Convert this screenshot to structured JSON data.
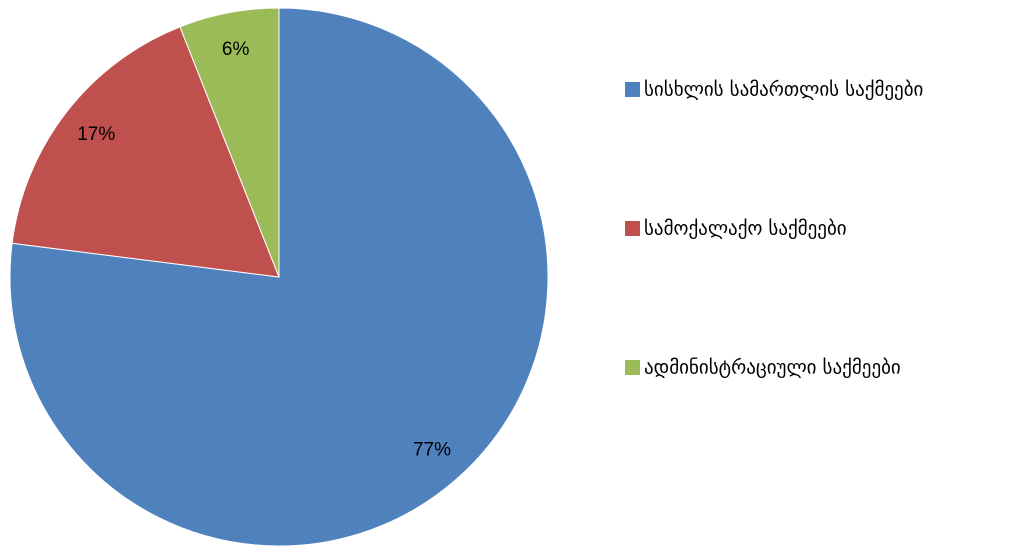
{
  "chart_data": {
    "type": "pie",
    "categories": [
      "სისხლის სამართლის საქმეები",
      "სამოქალაქო საქმეები",
      "ადმინისტრაციული საქმეები"
    ],
    "values": [
      77,
      17,
      6
    ],
    "value_labels": [
      "77%",
      "17%",
      "6%"
    ],
    "colors": [
      "#4f81bd",
      "#c0504d",
      "#9bbb59"
    ],
    "legend": "right"
  }
}
